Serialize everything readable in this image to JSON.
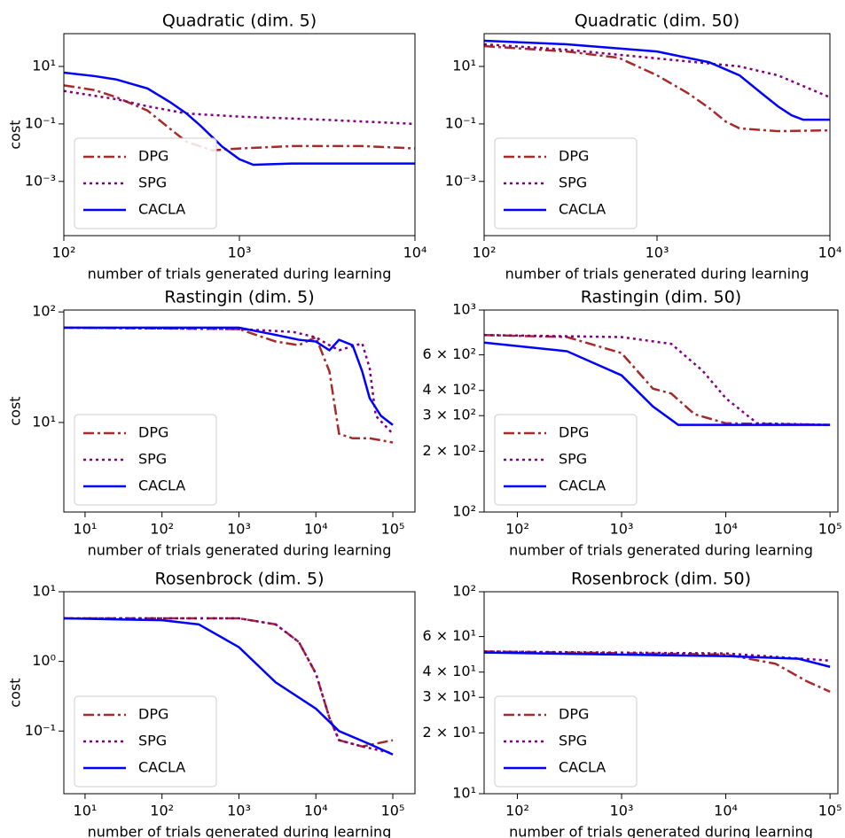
{
  "chart_data": [
    {
      "type": "line",
      "title": "Quadratic (dim. 5)",
      "xlabel": "number of trials generated during learning",
      "ylabel": "cost",
      "xscale": "log",
      "yscale": "log",
      "legend": "lower left",
      "xlim": [
        100,
        10000
      ],
      "ylim": [
        1.3e-05,
        138
      ],
      "xticks": [
        {
          "value": 100,
          "label": "10²"
        },
        {
          "value": 1000,
          "label": "10³"
        },
        {
          "value": 10000,
          "label": "10⁴"
        }
      ],
      "yticks": [
        {
          "value": 0.001,
          "label": "10⁻³"
        },
        {
          "value": 0.1,
          "label": "10⁻¹"
        },
        {
          "value": 10,
          "label": "10¹"
        }
      ],
      "series": [
        {
          "name": "DPG",
          "color": "#a52a2a",
          "linestyle": "dashdot",
          "x": [
            100,
            150,
            200,
            300,
            400,
            500,
            700,
            1000,
            2000,
            5000,
            10000
          ],
          "values": [
            2.2,
            1.5,
            0.84,
            0.29,
            0.07,
            0.024,
            0.012,
            0.014,
            0.017,
            0.017,
            0.014
          ]
        },
        {
          "name": "SPG",
          "color": "#800080",
          "linestyle": "dotted",
          "x": [
            100,
            200,
            300,
            500,
            1000,
            3000,
            10000
          ],
          "values": [
            1.4,
            0.72,
            0.41,
            0.23,
            0.18,
            0.14,
            0.1
          ]
        },
        {
          "name": "CACLA",
          "color": "#0000ff",
          "linestyle": "solid",
          "x": [
            100,
            150,
            200,
            300,
            400,
            500,
            600,
            700,
            800,
            1000,
            1200,
            2000,
            5000,
            10000
          ],
          "values": [
            6.1,
            4.6,
            3.5,
            1.7,
            0.59,
            0.23,
            0.087,
            0.035,
            0.016,
            0.0059,
            0.0038,
            0.0042,
            0.0042,
            0.0042
          ]
        }
      ]
    },
    {
      "type": "line",
      "title": "Quadratic (dim. 50)",
      "xlabel": "number of trials generated during learning",
      "xscale": "log",
      "yscale": "log",
      "legend": "lower left",
      "xlim": [
        100,
        10000
      ],
      "ylim": [
        1.3e-05,
        138
      ],
      "xticks": [
        {
          "value": 100,
          "label": "10²"
        },
        {
          "value": 1000,
          "label": "10³"
        },
        {
          "value": 10000,
          "label": "10⁴"
        }
      ],
      "yticks": [
        {
          "value": 0.001,
          "label": "10⁻³"
        },
        {
          "value": 0.1,
          "label": "10⁻¹"
        },
        {
          "value": 10,
          "label": "10¹"
        }
      ],
      "series": [
        {
          "name": "DPG",
          "color": "#a52a2a",
          "linestyle": "dashdot",
          "x": [
            100,
            300,
            600,
            1000,
            1500,
            2000,
            2500,
            3000,
            5000,
            10000
          ],
          "values": [
            51,
            33,
            20,
            4.9,
            1.2,
            0.36,
            0.12,
            0.07,
            0.056,
            0.06
          ]
        },
        {
          "name": "SPG",
          "color": "#800080",
          "linestyle": "dotted",
          "x": [
            100,
            300,
            1000,
            3000,
            5000,
            10000
          ],
          "values": [
            59,
            38,
            19,
            10,
            4.9,
            0.84
          ]
        },
        {
          "name": "CACLA",
          "color": "#0000ff",
          "linestyle": "solid",
          "x": [
            100,
            300,
            1000,
            2000,
            3000,
            4000,
            5000,
            6000,
            7000,
            10000
          ],
          "values": [
            78,
            59,
            33,
            14,
            4.9,
            1.2,
            0.41,
            0.2,
            0.14,
            0.14
          ]
        }
      ]
    },
    {
      "type": "line",
      "title": "Rastingin (dim. 5)",
      "xlabel": "number of trials generated during learning",
      "ylabel": "cost",
      "xscale": "log",
      "yscale": "log",
      "legend": "lower left",
      "xlim": [
        5.3,
        194000
      ],
      "ylim": [
        1.55,
        104
      ],
      "xticks": [
        {
          "value": 10,
          "label": "10¹"
        },
        {
          "value": 100,
          "label": "10²"
        },
        {
          "value": 1000,
          "label": "10³"
        },
        {
          "value": 10000,
          "label": "10⁴"
        },
        {
          "value": 100000,
          "label": "10⁵"
        }
      ],
      "yticks": [
        {
          "value": 10,
          "label": "10¹"
        },
        {
          "value": 100,
          "label": "10²"
        }
      ],
      "series": [
        {
          "name": "DPG",
          "color": "#a52a2a",
          "linestyle": "dashdot",
          "x": [
            5.3,
            1000,
            3000,
            6000,
            10000,
            15000,
            20000,
            30000,
            50000,
            100000
          ],
          "values": [
            72,
            70,
            54,
            50,
            59,
            29,
            7.9,
            7.2,
            7.2,
            6.6
          ]
        },
        {
          "name": "SPG",
          "color": "#800080",
          "linestyle": "dotted",
          "x": [
            5.3,
            1000,
            5000,
            10000,
            15000,
            20000,
            40000,
            50000,
            60000,
            100000
          ],
          "values": [
            72,
            70,
            66,
            59,
            50,
            45,
            52,
            31,
            11.5,
            7.9
          ]
        },
        {
          "name": "CACLA",
          "color": "#0000ff",
          "linestyle": "solid",
          "x": [
            5.3,
            1000,
            3000,
            6000,
            10000,
            15000,
            20000,
            30000,
            40000,
            50000,
            70000,
            100000
          ],
          "values": [
            72,
            72,
            62,
            56,
            54,
            45,
            56,
            50,
            29,
            16.6,
            11.5,
            9.5
          ]
        }
      ]
    },
    {
      "type": "line",
      "title": "Rastingin (dim. 50)",
      "xlabel": "number of trials generated during learning",
      "xscale": "log",
      "yscale": "log",
      "legend": "lower left",
      "xlim": [
        48,
        119000
      ],
      "ylim": [
        100,
        1000
      ],
      "xticks": [
        {
          "value": 100,
          "label": "10²"
        },
        {
          "value": 1000,
          "label": "10³"
        },
        {
          "value": 10000,
          "label": "10⁴"
        },
        {
          "value": 100000,
          "label": "10⁵"
        }
      ],
      "yticks": [
        {
          "value": 100,
          "label": "10²"
        },
        {
          "value": 200,
          "label": "2 × 10²"
        },
        {
          "value": 300,
          "label": "3 × 10²"
        },
        {
          "value": 400,
          "label": "4 × 10²"
        },
        {
          "value": 600,
          "label": "6 × 10²"
        },
        {
          "value": 1000,
          "label": "10³"
        }
      ],
      "series": [
        {
          "name": "DPG",
          "color": "#a52a2a",
          "linestyle": "dashdot",
          "x": [
            48,
            300,
            1000,
            2000,
            3000,
            5000,
            10000,
            100000
          ],
          "values": [
            752,
            735,
            612,
            408,
            386,
            305,
            275,
            270
          ]
        },
        {
          "name": "SPG",
          "color": "#800080",
          "linestyle": "dotted",
          "x": [
            48,
            1000,
            3000,
            6000,
            10000,
            20000,
            100000
          ],
          "values": [
            752,
            735,
            680,
            500,
            366,
            275,
            270
          ]
        },
        {
          "name": "CACLA",
          "color": "#0000ff",
          "linestyle": "solid",
          "x": [
            48,
            300,
            1000,
            2000,
            3500,
            10000,
            100000
          ],
          "values": [
            690,
            625,
            475,
            333,
            270,
            270,
            270
          ]
        }
      ]
    },
    {
      "type": "line",
      "title": "Rosenbrock (dim. 5)",
      "xlabel": "number of trials generated during learning",
      "ylabel": "cost",
      "xscale": "log",
      "yscale": "log",
      "legend": "lower left",
      "xlim": [
        5.3,
        194000
      ],
      "ylim": [
        0.0126,
        10
      ],
      "xticks": [
        {
          "value": 10,
          "label": "10¹"
        },
        {
          "value": 100,
          "label": "10²"
        },
        {
          "value": 1000,
          "label": "10³"
        },
        {
          "value": 10000,
          "label": "10⁴"
        },
        {
          "value": 100000,
          "label": "10⁵"
        }
      ],
      "yticks": [
        {
          "value": 0.1,
          "label": "10⁻¹"
        },
        {
          "value": 1,
          "label": "10⁰"
        },
        {
          "value": 10,
          "label": "10¹"
        }
      ],
      "series": [
        {
          "name": "DPG",
          "color": "#a52a2a",
          "linestyle": "dashdot",
          "x": [
            5.3,
            1000,
            3000,
            6000,
            10000,
            15000,
            20000,
            40000,
            100000
          ],
          "values": [
            4.15,
            4.15,
            3.4,
            1.9,
            0.67,
            0.155,
            0.074,
            0.06,
            0.074
          ]
        },
        {
          "name": "SPG",
          "color": "#800080",
          "linestyle": "dotted",
          "x": [
            5.3,
            1000,
            3000,
            6000,
            10000,
            15000,
            20000,
            40000,
            100000
          ],
          "values": [
            4.15,
            4.15,
            3.4,
            1.9,
            0.67,
            0.155,
            0.074,
            0.06,
            0.048
          ]
        },
        {
          "name": "CACLA",
          "color": "#0000ff",
          "linestyle": "solid",
          "x": [
            5.3,
            100,
            300,
            1000,
            3000,
            10000,
            20000,
            50000,
            100000
          ],
          "values": [
            4.15,
            3.9,
            3.4,
            1.6,
            0.5,
            0.21,
            0.1,
            0.065,
            0.046
          ]
        }
      ]
    },
    {
      "type": "line",
      "title": "Rosenbrock (dim. 50)",
      "xlabel": "number of trials generated during learning",
      "xscale": "log",
      "yscale": "log",
      "legend": "lower left",
      "xlim": [
        48,
        119000
      ],
      "ylim": [
        10,
        100
      ],
      "xticks": [
        {
          "value": 100,
          "label": "10²"
        },
        {
          "value": 1000,
          "label": "10³"
        },
        {
          "value": 10000,
          "label": "10⁴"
        },
        {
          "value": 100000,
          "label": "10⁵"
        }
      ],
      "yticks": [
        {
          "value": 10,
          "label": "10¹"
        },
        {
          "value": 20,
          "label": "2 × 10¹"
        },
        {
          "value": 30,
          "label": "3 × 10¹"
        },
        {
          "value": 40,
          "label": "4 × 10¹"
        },
        {
          "value": 60,
          "label": "6 × 10¹"
        },
        {
          "value": 100,
          "label": "10²"
        }
      ],
      "series": [
        {
          "name": "DPG",
          "color": "#a52a2a",
          "linestyle": "dashdot",
          "x": [
            48,
            10000,
            30000,
            60000,
            100000
          ],
          "values": [
            50.6,
            48.9,
            44,
            36,
            32
          ]
        },
        {
          "name": "SPG",
          "color": "#800080",
          "linestyle": "dotted",
          "x": [
            48,
            10000,
            100000
          ],
          "values": [
            50.6,
            49.5,
            45.6
          ]
        },
        {
          "name": "CACLA",
          "color": "#0000ff",
          "linestyle": "solid",
          "x": [
            48,
            10000,
            50000,
            100000
          ],
          "values": [
            50,
            48,
            46.6,
            42.5
          ]
        }
      ]
    }
  ]
}
